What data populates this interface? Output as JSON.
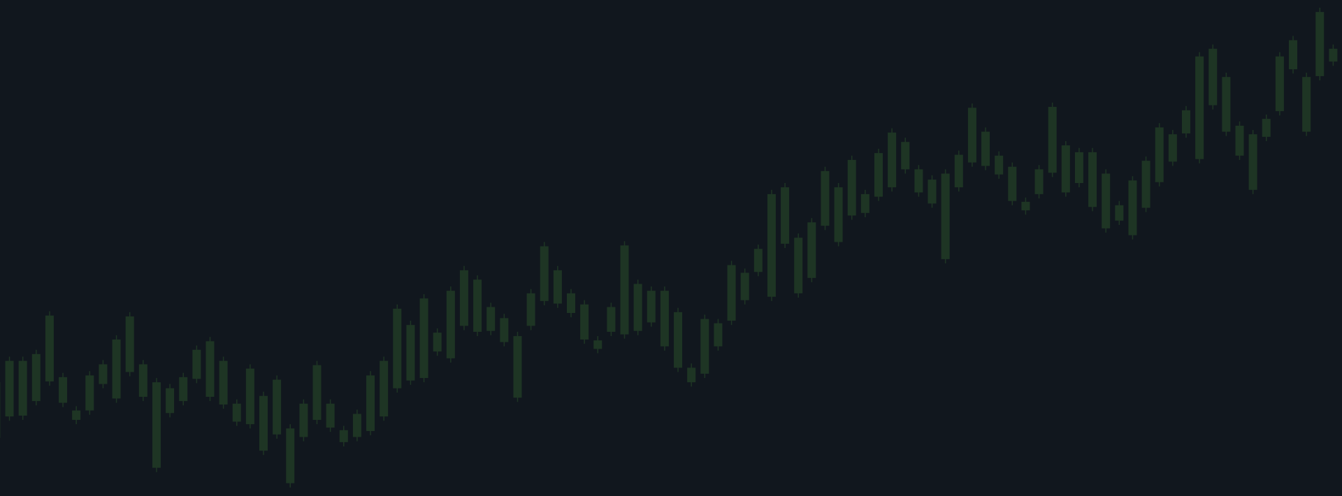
{
  "chart_data": {
    "type": "candlestick",
    "color": "#1e3524",
    "background": "#11171e",
    "ylim": [
      0,
      580
    ],
    "open": [
      68,
      93,
      94,
      111,
      134,
      109,
      89,
      100,
      131,
      114,
      145,
      116,
      33,
      97,
      111,
      137,
      116,
      107,
      87,
      84,
      53,
      72,
      15,
      69,
      89,
      80,
      63,
      69,
      76,
      93,
      126,
      135,
      138,
      169,
      161,
      199,
      192,
      193,
      180,
      115,
      199,
      228,
      225,
      214,
      183,
      172,
      192,
      189,
      193,
      203,
      175,
      150,
      133,
      143,
      175,
      205,
      229,
      262,
      233,
      295,
      237,
      255,
      316,
      297,
      328,
      331,
      350,
      361,
      382,
      355,
      342,
      277,
      361,
      390,
      386,
      376,
      345,
      334,
      353,
      378,
      355,
      366,
      338,
      313,
      322,
      305,
      337,
      367,
      391,
      424,
      394,
      457,
      426,
      398,
      358,
      420,
      450,
      499,
      426,
      491,
      508
    ],
    "high": [
      138,
      163,
      163,
      171,
      216,
      144,
      105,
      146,
      159,
      188,
      215,
      159,
      138,
      131,
      144,
      176,
      186,
      163,
      113,
      154,
      122,
      141,
      84,
      113,
      158,
      113,
      82,
      101,
      146,
      163,
      224,
      205,
      236,
      196,
      245,
      269,
      258,
      226,
      213,
      192,
      242,
      297,
      269,
      242,
      229,
      187,
      226,
      298,
      253,
      245,
      245,
      220,
      155,
      212,
      207,
      275,
      266,
      294,
      358,
      366,
      307,
      325,
      385,
      366,
      398,
      358,
      406,
      430,
      419,
      387,
      375,
      382,
      404,
      459,
      431,
      403,
      390,
      349,
      387,
      460,
      415,
      407,
      407,
      382,
      345,
      374,
      397,
      436,
      428,
      456,
      519,
      528,
      495,
      438,
      428,
      446,
      519,
      538,
      495,
      571,
      528
    ],
    "low": [
      63,
      88,
      89,
      106,
      129,
      104,
      84,
      95,
      126,
      109,
      140,
      111,
      28,
      92,
      106,
      132,
      111,
      102,
      82,
      79,
      48,
      67,
      10,
      64,
      84,
      75,
      58,
      64,
      71,
      88,
      121,
      130,
      133,
      164,
      156,
      194,
      187,
      188,
      175,
      110,
      194,
      223,
      220,
      209,
      178,
      167,
      187,
      184,
      188,
      198,
      170,
      145,
      128,
      138,
      170,
      200,
      224,
      257,
      228,
      290,
      232,
      250,
      311,
      292,
      323,
      326,
      345,
      356,
      377,
      350,
      337,
      272,
      356,
      385,
      381,
      371,
      340,
      329,
      348,
      373,
      350,
      361,
      333,
      308,
      317,
      300,
      332,
      362,
      386,
      419,
      389,
      452,
      421,
      393,
      353,
      415,
      445,
      494,
      421,
      486,
      503
    ],
    "close": [
      133,
      158,
      158,
      166,
      211,
      139,
      100,
      141,
      154,
      183,
      210,
      154,
      133,
      126,
      139,
      171,
      181,
      158,
      108,
      149,
      117,
      136,
      79,
      108,
      153,
      108,
      77,
      96,
      141,
      158,
      219,
      200,
      231,
      191,
      240,
      264,
      253,
      221,
      208,
      187,
      237,
      292,
      264,
      237,
      224,
      182,
      221,
      293,
      248,
      240,
      240,
      215,
      150,
      207,
      202,
      270,
      261,
      289,
      353,
      361,
      302,
      320,
      380,
      361,
      393,
      353,
      401,
      425,
      414,
      382,
      370,
      377,
      399,
      454,
      426,
      398,
      385,
      344,
      382,
      455,
      410,
      402,
      402,
      377,
      340,
      369,
      392,
      431,
      423,
      451,
      514,
      523,
      490,
      433,
      423,
      441,
      514,
      533,
      490,
      566,
      523
    ]
  }
}
